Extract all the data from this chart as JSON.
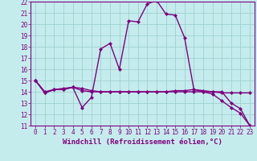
{
  "xlabel": "Windchill (Refroidissement éolien,°C)",
  "xlim": [
    -0.5,
    23.5
  ],
  "ylim": [
    11,
    22
  ],
  "xticks": [
    0,
    1,
    2,
    3,
    4,
    5,
    6,
    7,
    8,
    9,
    10,
    11,
    12,
    13,
    14,
    15,
    16,
    17,
    18,
    19,
    20,
    21,
    22,
    23
  ],
  "yticks": [
    11,
    12,
    13,
    14,
    15,
    16,
    17,
    18,
    19,
    20,
    21,
    22
  ],
  "background_color": "#c5eced",
  "grid_color": "#9ed0d0",
  "line_color": "#800080",
  "line1_x": [
    0,
    1,
    2,
    3,
    4,
    5,
    6,
    7,
    8,
    9,
    10,
    11,
    12,
    13,
    14,
    15,
    16,
    17,
    18,
    19,
    20,
    21,
    22,
    23
  ],
  "line1_y": [
    15.0,
    13.9,
    14.2,
    14.2,
    14.4,
    12.6,
    13.5,
    17.8,
    18.3,
    16.0,
    20.3,
    20.2,
    21.8,
    22.1,
    20.9,
    20.8,
    18.8,
    14.2,
    14.0,
    14.0,
    14.0,
    13.0,
    12.5,
    11.0
  ],
  "line2_x": [
    0,
    1,
    2,
    3,
    4,
    5,
    6,
    7,
    8,
    9,
    10,
    11,
    12,
    13,
    14,
    15,
    16,
    17,
    18,
    19,
    20,
    21,
    22,
    23
  ],
  "line2_y": [
    15.0,
    13.9,
    14.2,
    14.2,
    14.4,
    14.1,
    14.0,
    14.0,
    14.0,
    14.0,
    14.0,
    14.0,
    14.0,
    14.0,
    14.0,
    14.0,
    14.0,
    14.0,
    14.0,
    13.8,
    13.2,
    12.6,
    12.1,
    11.0
  ],
  "line3_x": [
    0,
    1,
    2,
    3,
    4,
    5,
    6,
    7,
    8,
    9,
    10,
    11,
    12,
    13,
    14,
    15,
    16,
    17,
    18,
    19,
    20,
    21,
    22,
    23
  ],
  "line3_y": [
    15.0,
    14.0,
    14.2,
    14.3,
    14.4,
    14.3,
    14.1,
    14.0,
    14.0,
    14.0,
    14.0,
    14.0,
    14.0,
    14.0,
    14.0,
    14.1,
    14.1,
    14.2,
    14.1,
    14.0,
    13.9,
    13.9,
    13.9,
    13.9
  ],
  "marker": "D",
  "marker_size": 2,
  "line_width": 1.0,
  "tick_fontsize": 5.5,
  "label_fontsize": 6.5
}
